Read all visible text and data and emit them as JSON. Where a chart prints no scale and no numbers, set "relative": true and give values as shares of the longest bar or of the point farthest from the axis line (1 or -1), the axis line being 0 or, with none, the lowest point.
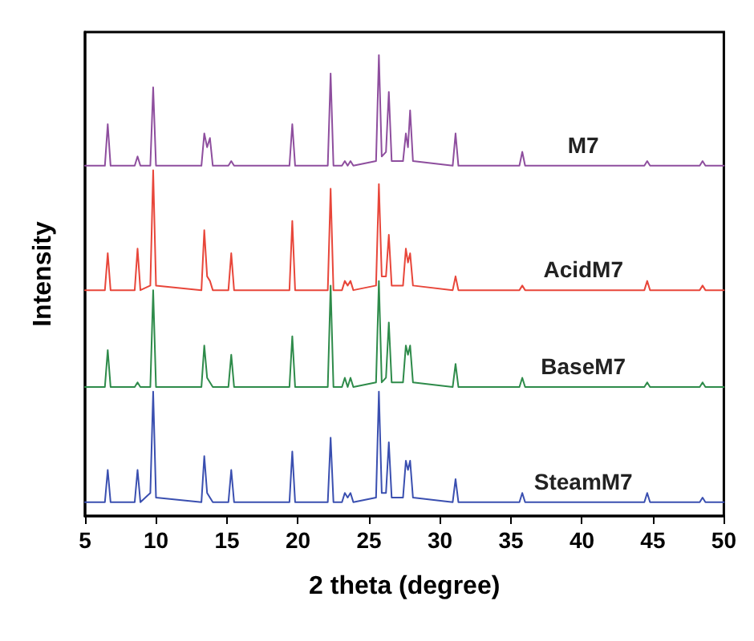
{
  "chart_data": {
    "type": "line",
    "relative": true,
    "xlabel": "2 theta (degree)",
    "ylabel": "Intensity",
    "xlim": [
      5,
      50
    ],
    "xticks": [
      5,
      10,
      15,
      20,
      25,
      30,
      35,
      40,
      45,
      50
    ],
    "grid": false,
    "legend": false,
    "marker": "none",
    "line_style": "solid",
    "x": [
      5,
      6.4,
      6.6,
      6.8,
      8.5,
      8.7,
      8.9,
      9.6,
      9.8,
      10,
      13.2,
      13.4,
      13.6,
      13.8,
      14,
      15.1,
      15.3,
      15.5,
      19.4,
      19.6,
      19.8,
      22.1,
      22.3,
      22.5,
      23.1,
      23.3,
      23.5,
      23.7,
      23.9,
      25.5,
      25.7,
      25.9,
      26.2,
      26.4,
      26.6,
      27.4,
      27.6,
      27.75,
      27.9,
      28.1,
      30.9,
      31.1,
      31.3,
      35.6,
      35.8,
      36,
      44.4,
      44.6,
      44.8,
      48.3,
      48.5,
      48.7,
      50
    ],
    "series": [
      {
        "name": "M7",
        "color": "#8e4e9e",
        "values": [
          0.76,
          0.76,
          0.85,
          0.76,
          0.76,
          0.78,
          0.76,
          0.76,
          0.93,
          0.76,
          0.76,
          0.83,
          0.8,
          0.82,
          0.76,
          0.76,
          0.77,
          0.76,
          0.76,
          0.85,
          0.76,
          0.76,
          0.96,
          0.76,
          0.76,
          0.77,
          0.76,
          0.77,
          0.76,
          0.77,
          1,
          0.78,
          0.79,
          0.92,
          0.77,
          0.77,
          0.83,
          0.8,
          0.88,
          0.77,
          0.76,
          0.83,
          0.76,
          0.76,
          0.79,
          0.76,
          0.76,
          0.77,
          0.76,
          0.76,
          0.77,
          0.76,
          0.76
        ]
      },
      {
        "name": "AcidM7",
        "color": "#e8463a",
        "values": [
          0.49,
          0.49,
          0.57,
          0.49,
          0.49,
          0.58,
          0.49,
          0.5,
          0.75,
          0.5,
          0.49,
          0.62,
          0.52,
          0.51,
          0.49,
          0.49,
          0.57,
          0.49,
          0.49,
          0.64,
          0.49,
          0.49,
          0.71,
          0.49,
          0.49,
          0.51,
          0.5,
          0.51,
          0.49,
          0.5,
          0.72,
          0.52,
          0.52,
          0.61,
          0.5,
          0.5,
          0.58,
          0.55,
          0.57,
          0.5,
          0.49,
          0.52,
          0.49,
          0.49,
          0.5,
          0.49,
          0.49,
          0.51,
          0.49,
          0.49,
          0.5,
          0.49,
          0.49
        ]
      },
      {
        "name": "BaseM7",
        "color": "#2e8b4a",
        "values": [
          0.28,
          0.28,
          0.36,
          0.28,
          0.28,
          0.29,
          0.28,
          0.28,
          0.49,
          0.28,
          0.28,
          0.37,
          0.3,
          0.29,
          0.28,
          0.28,
          0.35,
          0.28,
          0.28,
          0.39,
          0.28,
          0.28,
          0.5,
          0.28,
          0.28,
          0.3,
          0.28,
          0.3,
          0.28,
          0.29,
          0.51,
          0.29,
          0.3,
          0.42,
          0.29,
          0.29,
          0.37,
          0.35,
          0.37,
          0.29,
          0.28,
          0.33,
          0.28,
          0.28,
          0.3,
          0.28,
          0.28,
          0.29,
          0.28,
          0.28,
          0.29,
          0.28,
          0.28
        ]
      },
      {
        "name": "SteamM7",
        "color": "#3a4fb0",
        "values": [
          0.03,
          0.03,
          0.1,
          0.03,
          0.03,
          0.1,
          0.03,
          0.05,
          0.27,
          0.04,
          0.03,
          0.13,
          0.05,
          0.04,
          0.03,
          0.03,
          0.1,
          0.03,
          0.03,
          0.14,
          0.03,
          0.03,
          0.17,
          0.03,
          0.03,
          0.05,
          0.04,
          0.05,
          0.03,
          0.04,
          0.27,
          0.05,
          0.05,
          0.16,
          0.04,
          0.04,
          0.12,
          0.1,
          0.12,
          0.04,
          0.03,
          0.08,
          0.03,
          0.03,
          0.05,
          0.03,
          0.03,
          0.05,
          0.03,
          0.03,
          0.04,
          0.03,
          0.03
        ]
      }
    ]
  }
}
